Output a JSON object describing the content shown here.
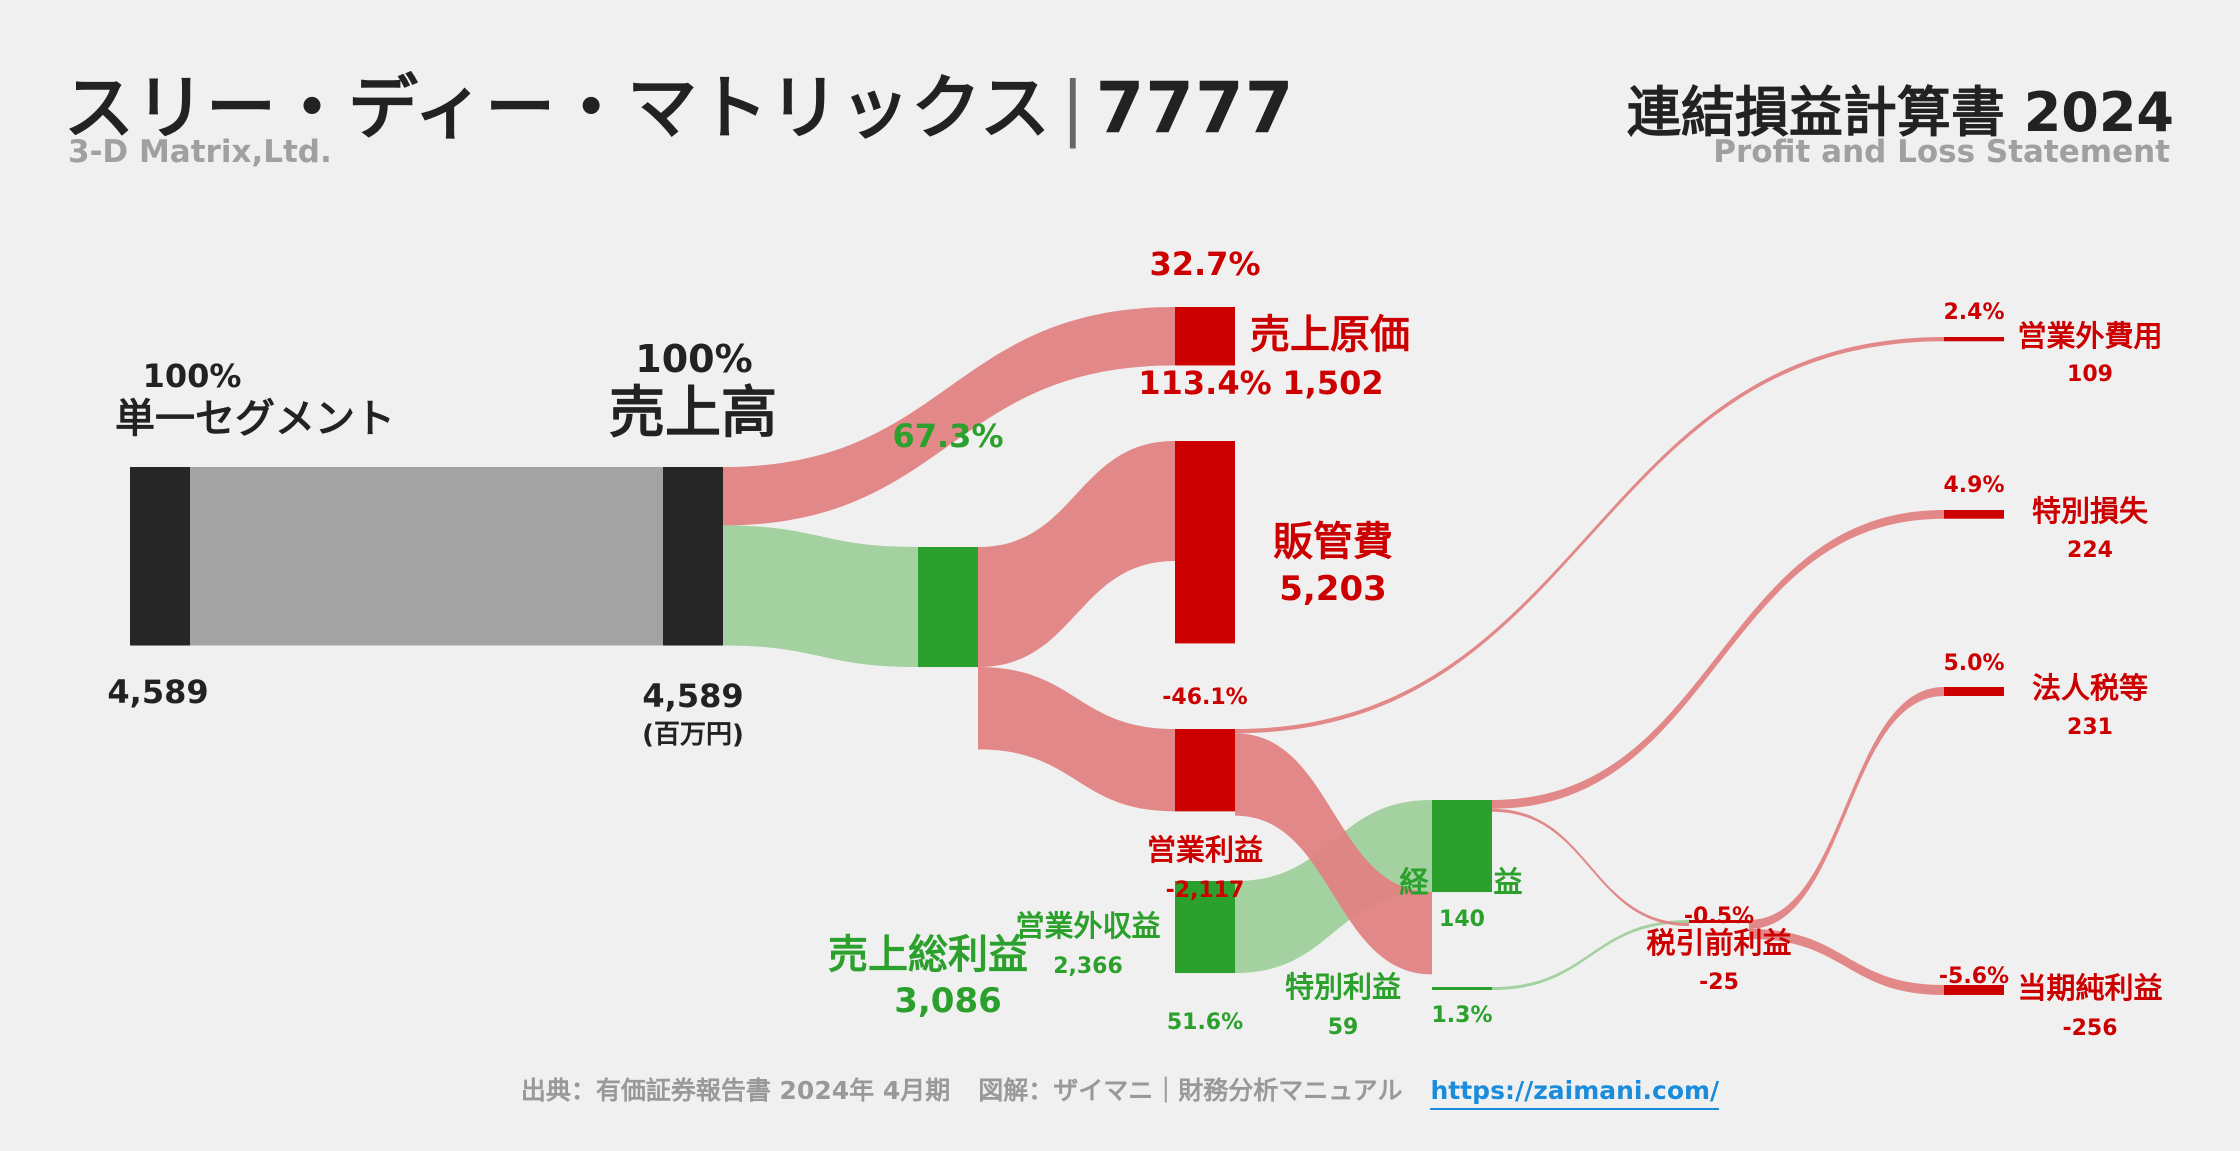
{
  "header": {
    "company": "スリー・ディー・マトリックス",
    "separator": "|",
    "code": "7777",
    "company_en": "3-D Matrix,Ltd.",
    "statement": "連結損益計算書 2024",
    "statement_en": "Profit and Loss Statement"
  },
  "footer": {
    "source": "出典：有価証券報告書 2024年 4月期",
    "credit": "図解：ザイマニ｜財務分析マニュアル",
    "url": "https://zaimani.com/"
  },
  "colors": {
    "black": "#262626",
    "grey": "#9e9e9e",
    "red": "#cc0000",
    "red_link": "#e08282",
    "green": "#2ca02c",
    "green_link": "#9ecf9a",
    "text_dark": "#222222"
  },
  "chart_data": {
    "type": "sankey",
    "unit": "(百万円)",
    "nodes": [
      {
        "id": "segment",
        "name": "単一セグメント",
        "value": 4589,
        "value_label": "4,589",
        "pct": "100%"
      },
      {
        "id": "revenue",
        "name": "売上高",
        "value": 4589,
        "value_label": "4,589",
        "pct": "100%"
      },
      {
        "id": "cogs",
        "name": "売上原価",
        "value": 1502,
        "value_label": "1,502",
        "pct": "32.7%",
        "ratio": "113.4%"
      },
      {
        "id": "gross",
        "name": "売上総利益",
        "value": 3086,
        "value_label": "3,086",
        "pct": "67.3%"
      },
      {
        "id": "sga",
        "name": "販管費",
        "value": 5203,
        "value_label": "5,203"
      },
      {
        "id": "op",
        "name": "営業利益",
        "value": -2117,
        "value_label": "-2,117",
        "pct": "-46.1%"
      },
      {
        "id": "nonop_inc",
        "name": "営業外収益",
        "value": 2366,
        "value_label": "2,366",
        "pct": "51.6%"
      },
      {
        "id": "ordinary",
        "name": "経常利益",
        "value": 140,
        "value_label": "140"
      },
      {
        "id": "nonop_exp",
        "name": "営業外費用",
        "value": 109,
        "value_label": "109",
        "pct": "2.4%"
      },
      {
        "id": "ext_gain",
        "name": "特別利益",
        "value": 59,
        "value_label": "59",
        "pct": "1.3%"
      },
      {
        "id": "ext_loss",
        "name": "特別損失",
        "value": 224,
        "value_label": "224",
        "pct": "4.9%"
      },
      {
        "id": "pretax",
        "name": "税引前利益",
        "value": -25,
        "value_label": "-25",
        "pct": "-0.5%"
      },
      {
        "id": "tax",
        "name": "法人税等",
        "value": 231,
        "value_label": "231",
        "pct": "5.0%"
      },
      {
        "id": "net",
        "name": "当期純利益",
        "value": -256,
        "value_label": "-256",
        "pct": "-5.6%"
      }
    ],
    "links": [
      {
        "source": "segment",
        "target": "revenue",
        "value": 4589
      },
      {
        "source": "revenue",
        "target": "cogs",
        "value": 1502
      },
      {
        "source": "revenue",
        "target": "gross",
        "value": 3086
      },
      {
        "source": "gross",
        "target": "sga",
        "value": 3086
      },
      {
        "source": "op",
        "target": "sga",
        "value": 2117
      },
      {
        "source": "nonop_inc",
        "target": "ordinary",
        "value": 2366
      },
      {
        "source": "op",
        "target": "nonop_exp",
        "value": 109
      },
      {
        "source": "op",
        "target": "ordinary",
        "value": 2117
      },
      {
        "source": "ordinary",
        "target": "ext_loss",
        "value": 224
      },
      {
        "source": "ext_gain",
        "target": "pretax",
        "value": 59
      },
      {
        "source": "ordinary",
        "target": "pretax",
        "value": 25
      },
      {
        "source": "pretax",
        "target": "tax",
        "value": 231
      },
      {
        "source": "pretax",
        "target": "net",
        "value": 256
      }
    ]
  }
}
